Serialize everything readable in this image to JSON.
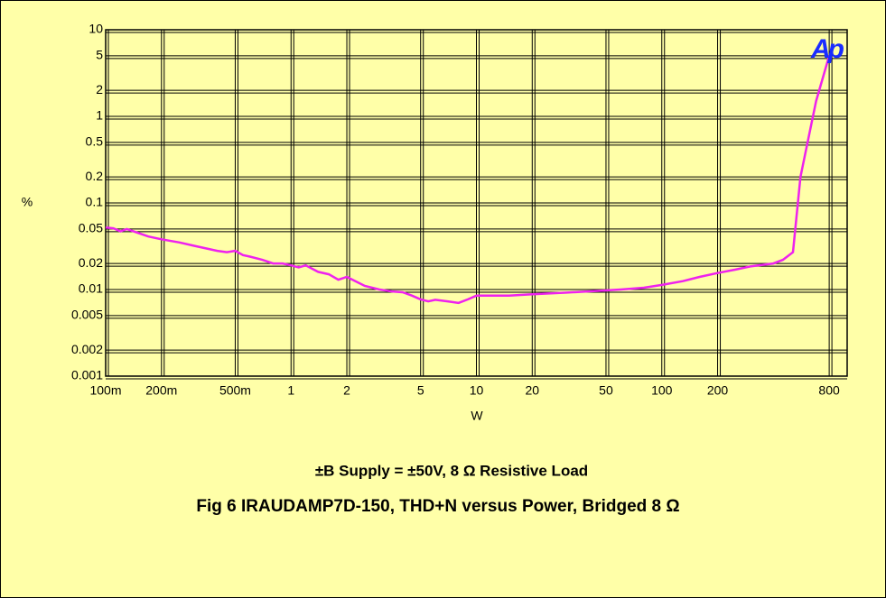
{
  "chart_data": {
    "type": "line",
    "title": "Fig 6 IRAUDAMP7D-150, THD+N versus Power, Bridged 8 Ω",
    "subtitle": "±B Supply = ±50V,  8 Ω Resistive Load",
    "xlabel": "W",
    "ylabel": "%",
    "logo": "Ap",
    "xscale": "log",
    "yscale": "log",
    "grid": true,
    "color": "#ee22ee",
    "xlim": [
      0.1,
      1000
    ],
    "ylim": [
      0.001,
      10
    ],
    "xticks": [
      {
        "value": 0.1,
        "label": "100m"
      },
      {
        "value": 0.2,
        "label": "200m"
      },
      {
        "value": 0.5,
        "label": "500m"
      },
      1,
      2,
      5,
      10,
      20,
      50,
      100,
      200,
      800
    ],
    "yticks": [
      0.001,
      0.002,
      0.005,
      0.01,
      0.02,
      0.05,
      0.1,
      0.2,
      0.5,
      1,
      2,
      5,
      10
    ],
    "x": [
      0.1,
      0.11,
      0.12,
      0.13,
      0.15,
      0.17,
      0.2,
      0.25,
      0.3,
      0.4,
      0.45,
      0.5,
      0.55,
      0.6,
      0.7,
      0.8,
      0.9,
      1.0,
      1.1,
      1.2,
      1.4,
      1.6,
      1.8,
      2.0,
      2.5,
      3,
      3.5,
      4,
      4.5,
      5,
      5.5,
      6,
      7,
      8,
      9,
      10,
      15,
      20,
      30,
      40,
      60,
      80,
      100,
      130,
      160,
      200,
      250,
      300,
      400,
      450,
      510,
      560,
      680,
      800
    ],
    "values": [
      0.052,
      0.051,
      0.047,
      0.05,
      0.045,
      0.041,
      0.038,
      0.035,
      0.032,
      0.028,
      0.027,
      0.028,
      0.025,
      0.024,
      0.022,
      0.02,
      0.02,
      0.019,
      0.018,
      0.019,
      0.016,
      0.015,
      0.013,
      0.014,
      0.011,
      0.01,
      0.0095,
      0.0093,
      0.0085,
      0.0077,
      0.0073,
      0.0076,
      0.0073,
      0.007,
      0.0077,
      0.0085,
      0.0085,
      0.0088,
      0.0092,
      0.0095,
      0.01,
      0.0105,
      0.0113,
      0.0125,
      0.014,
      0.0155,
      0.017,
      0.0185,
      0.02,
      0.022,
      0.027,
      0.2,
      1.5,
      5
    ]
  }
}
